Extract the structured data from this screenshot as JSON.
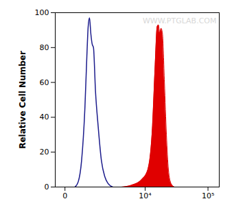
{
  "chart_data": {
    "type": "histogram",
    "y_label": "Relative Cell Number",
    "annotations": [
      "WWW.PTGLAB.COM"
    ],
    "log": "x",
    "xlim": [
      -250,
      150000
    ],
    "xticks": [
      0,
      {
        "value": 10000,
        "label": "10⁴"
      },
      {
        "value": 100000,
        "label": "10⁵"
      }
    ],
    "ylim": [
      0,
      100
    ],
    "yticks": [
      0,
      20,
      40,
      60,
      80,
      100
    ],
    "series": [
      {
        "type": "line",
        "color": "#1c1c8c",
        "x": [
          257,
          365,
          487,
          624,
          714,
          778,
          845,
          915,
          989,
          1066,
          1190,
          1368,
          1616,
          1896,
          2210,
          2718
        ],
        "values": [
          0,
          3,
          15,
          45,
          75,
          92,
          97,
          88,
          82,
          80,
          55,
          35,
          15,
          6,
          2,
          0
        ]
      },
      {
        "type": "area",
        "color": "#e00000",
        "x": [
          3918,
          5852,
          8618,
          11083,
          13195,
          14567,
          15697,
          16483,
          17322,
          18188,
          19108,
          20562,
          22116,
          23795,
          26222,
          29612
        ],
        "values": [
          0,
          1,
          4,
          10,
          35,
          70,
          92,
          93,
          88,
          91,
          88,
          60,
          30,
          10,
          2,
          0
        ]
      }
    ]
  }
}
